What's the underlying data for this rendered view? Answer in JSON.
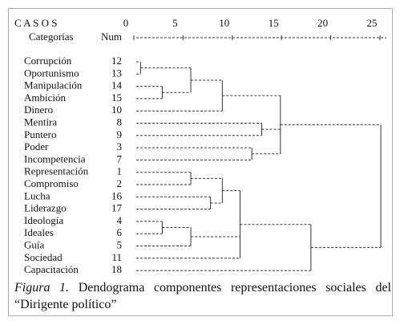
{
  "chart_data": {
    "type": "dendrogram",
    "cases_label": "C A S O S",
    "category_label": "Categorías",
    "num_label": "Num",
    "xlim": [
      0,
      25
    ],
    "xticks": [
      0,
      5,
      10,
      15,
      20,
      25
    ],
    "tree": {
      "height": 25.9,
      "children": [
        {
          "height": 15.7,
          "children": [
            {
              "height": 9.8,
              "children": [
                {
                  "height": 6.6,
                  "children": [
                    {
                      "height": 1.5,
                      "children": [
                        {
                          "label": "Corrupción",
                          "num": 12
                        },
                        {
                          "label": "Oportunismo",
                          "num": 13
                        }
                      ]
                    },
                    {
                      "height": 3.7,
                      "children": [
                        {
                          "label": "Manipulación",
                          "num": 14
                        },
                        {
                          "label": "Ambición",
                          "num": 15
                        }
                      ]
                    }
                  ]
                },
                {
                  "label": "Dinero",
                  "num": 10
                }
              ]
            },
            {
              "height": 13.8,
              "children": [
                {
                  "label": "Mentira",
                  "num": 8
                },
                {
                  "label": "Puntero",
                  "num": 9
                }
              ]
            },
            {
              "height": 12.8,
              "children": [
                {
                  "label": "Poder",
                  "num": 3
                },
                {
                  "label": "Incompetencia",
                  "num": 7
                }
              ]
            }
          ]
        },
        {
          "height": 18.8,
          "children": [
            {
              "height": 11.6,
              "children": [
                {
                  "height": 9.8,
                  "children": [
                    {
                      "height": 6.6,
                      "children": [
                        {
                          "label": "Representación",
                          "num": 1
                        },
                        {
                          "label": "Compromiso",
                          "num": 2
                        }
                      ]
                    },
                    {
                      "height": 8.6,
                      "children": [
                        {
                          "label": "Lucha",
                          "num": 16
                        },
                        {
                          "label": "Liderazgo",
                          "num": 17
                        }
                      ]
                    }
                  ]
                },
                {
                  "height": 6.6,
                  "children": [
                    {
                      "height": 3.7,
                      "children": [
                        {
                          "label": "Ideología",
                          "num": 4
                        },
                        {
                          "label": "Ideales",
                          "num": 6
                        }
                      ]
                    },
                    {
                      "label": "Guía",
                      "num": 5
                    }
                  ]
                },
                {
                  "label": "Sociedad",
                  "num": 11
                }
              ]
            },
            {
              "label": "Capacitación",
              "num": 18
            }
          ]
        }
      ]
    },
    "caption_label": "Figura 1.",
    "caption": "Dendograma componentes representaciones sociales del “Dirigente político”"
  }
}
